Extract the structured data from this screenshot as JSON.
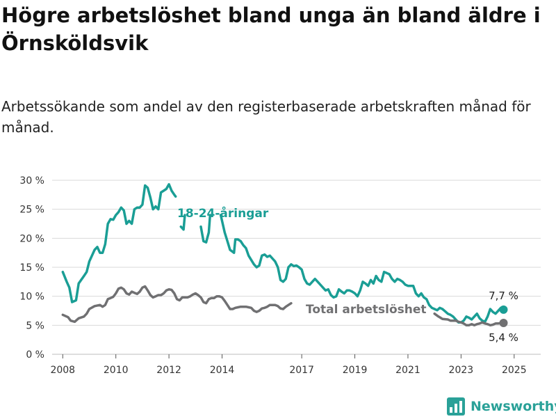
{
  "title": "Högre arbetslöshet bland unga än bland äldre i Örnsköldsvik",
  "subtitle": "Arbetssökande som andel av den registerbaserade arbetskraften månad för månad.",
  "brand": {
    "name": "Newsworthy",
    "icon": "bar-chart-logo-icon"
  },
  "colors": {
    "youth": "#1a9e95",
    "total": "#707072",
    "grid": "#d9d9d9",
    "text": "#333333"
  },
  "chart_data": {
    "type": "line",
    "title": "Högre arbetslöshet bland unga än bland äldre i Örnsköldsvik",
    "subtitle": "Arbetssökande som andel av den registerbaserade arbetskraften månad för månad.",
    "xlabel": "",
    "ylabel": "",
    "xlim": [
      2007.6,
      2026.0
    ],
    "ylim": [
      0,
      30
    ],
    "x_ticks": [
      {
        "value": 2008,
        "label": "2008"
      },
      {
        "value": 2010,
        "label": "2010"
      },
      {
        "value": 2012,
        "label": "2012"
      },
      {
        "value": 2014,
        "label": "2014"
      },
      {
        "value": 2017,
        "label": "2017"
      },
      {
        "value": 2019,
        "label": "2019"
      },
      {
        "value": 2021,
        "label": "2021"
      },
      {
        "value": 2023,
        "label": "2023"
      },
      {
        "value": 2025,
        "label": "2025"
      }
    ],
    "y_ticks": [
      {
        "value": 0,
        "label": "0 %"
      },
      {
        "value": 5,
        "label": "5 %"
      },
      {
        "value": 10,
        "label": "10 %"
      },
      {
        "value": 15,
        "label": "15 %"
      },
      {
        "value": 20,
        "label": "20 %"
      },
      {
        "value": 25,
        "label": "25 %"
      },
      {
        "value": 30,
        "label": "30 %"
      }
    ],
    "grid": true,
    "legend": "inline labels",
    "series": [
      {
        "name": "18-24-åringar",
        "color": "#1a9e95",
        "end_label": "7,7 %",
        "points": [
          [
            2008.0,
            14.2
          ],
          [
            2008.15,
            12.5
          ],
          [
            2008.25,
            11.5
          ],
          [
            2008.35,
            9.0
          ],
          [
            2008.5,
            9.3
          ],
          [
            2008.6,
            12.2
          ],
          [
            2008.8,
            13.5
          ],
          [
            2008.9,
            14.2
          ],
          [
            2009.0,
            16.0
          ],
          [
            2009.2,
            18.0
          ],
          [
            2009.3,
            18.5
          ],
          [
            2009.4,
            17.5
          ],
          [
            2009.5,
            17.5
          ],
          [
            2009.6,
            19.0
          ],
          [
            2009.7,
            22.5
          ],
          [
            2009.8,
            23.3
          ],
          [
            2009.9,
            23.2
          ],
          [
            2010.0,
            24.0
          ],
          [
            2010.1,
            24.5
          ],
          [
            2010.2,
            25.3
          ],
          [
            2010.3,
            24.8
          ],
          [
            2010.4,
            22.5
          ],
          [
            2010.5,
            23.0
          ],
          [
            2010.6,
            22.5
          ],
          [
            2010.7,
            25.0
          ],
          [
            2010.8,
            25.3
          ],
          [
            2010.9,
            25.3
          ],
          [
            2011.0,
            25.8
          ],
          [
            2011.1,
            29.1
          ],
          [
            2011.2,
            28.7
          ],
          [
            2011.3,
            27.0
          ],
          [
            2011.4,
            25.0
          ],
          [
            2011.5,
            25.5
          ],
          [
            2011.6,
            25.0
          ],
          [
            2011.7,
            27.9
          ],
          [
            2011.8,
            28.2
          ],
          [
            2011.9,
            28.5
          ],
          [
            2012.0,
            29.3
          ],
          [
            2012.1,
            28.2
          ],
          [
            2012.2,
            27.5
          ],
          [
            2012.25,
            27.2
          ],
          null,
          [
            2012.45,
            22.0
          ],
          [
            2012.55,
            21.5
          ],
          [
            2012.6,
            24.0
          ],
          null,
          [
            2013.2,
            22.0
          ],
          [
            2013.3,
            19.5
          ],
          [
            2013.4,
            19.3
          ],
          [
            2013.5,
            21.0
          ],
          [
            2013.55,
            24.0
          ],
          null,
          [
            2013.95,
            24.0
          ],
          [
            2014.1,
            21.0
          ],
          [
            2014.2,
            19.5
          ],
          [
            2014.3,
            18.0
          ],
          [
            2014.45,
            17.5
          ],
          [
            2014.5,
            19.8
          ],
          [
            2014.6,
            19.8
          ],
          [
            2014.7,
            19.5
          ],
          [
            2014.8,
            18.8
          ],
          [
            2014.9,
            18.3
          ],
          [
            2015.0,
            17.0
          ],
          [
            2015.2,
            15.5
          ],
          [
            2015.3,
            15.0
          ],
          [
            2015.4,
            15.3
          ],
          [
            2015.5,
            17.0
          ],
          [
            2015.6,
            17.2
          ],
          [
            2015.7,
            16.8
          ],
          [
            2015.8,
            17.0
          ],
          [
            2015.9,
            16.5
          ],
          [
            2016.0,
            16.0
          ],
          [
            2016.1,
            15.0
          ],
          [
            2016.2,
            12.8
          ],
          [
            2016.3,
            12.5
          ],
          [
            2016.4,
            13.0
          ],
          [
            2016.5,
            15.0
          ],
          [
            2016.6,
            15.5
          ],
          [
            2016.7,
            15.2
          ],
          [
            2016.8,
            15.3
          ],
          [
            2016.9,
            15.0
          ],
          [
            2017.0,
            14.6
          ],
          [
            2017.1,
            13.0
          ],
          [
            2017.2,
            12.2
          ],
          [
            2017.3,
            12.0
          ],
          [
            2017.4,
            12.5
          ],
          [
            2017.5,
            13.0
          ],
          [
            2017.6,
            12.5
          ],
          [
            2017.7,
            12.0
          ],
          [
            2017.8,
            11.5
          ],
          [
            2017.9,
            11.0
          ],
          [
            2018.0,
            11.2
          ],
          [
            2018.1,
            10.2
          ],
          [
            2018.2,
            9.8
          ],
          [
            2018.3,
            10.0
          ],
          [
            2018.4,
            11.2
          ],
          [
            2018.5,
            10.8
          ],
          [
            2018.6,
            10.5
          ],
          [
            2018.7,
            11.0
          ],
          [
            2018.8,
            11.0
          ],
          [
            2018.9,
            10.8
          ],
          [
            2019.0,
            10.5
          ],
          [
            2019.1,
            10.0
          ],
          [
            2019.2,
            11.0
          ],
          [
            2019.3,
            12.5
          ],
          [
            2019.4,
            12.2
          ],
          [
            2019.5,
            11.8
          ],
          [
            2019.6,
            12.8
          ],
          [
            2019.7,
            12.2
          ],
          [
            2019.8,
            13.5
          ],
          [
            2019.9,
            12.8
          ],
          [
            2020.0,
            12.5
          ],
          [
            2020.1,
            14.2
          ],
          [
            2020.2,
            14.0
          ],
          [
            2020.3,
            13.8
          ],
          [
            2020.4,
            13.0
          ],
          [
            2020.5,
            12.5
          ],
          [
            2020.6,
            13.0
          ],
          [
            2020.7,
            12.8
          ],
          [
            2020.8,
            12.5
          ],
          [
            2020.9,
            12.0
          ],
          [
            2021.0,
            11.8
          ],
          [
            2021.1,
            11.8
          ],
          [
            2021.2,
            11.8
          ],
          [
            2021.3,
            10.5
          ],
          [
            2021.4,
            10.0
          ],
          [
            2021.5,
            10.5
          ],
          [
            2021.6,
            9.8
          ],
          [
            2021.7,
            9.5
          ],
          [
            2021.8,
            8.5
          ],
          [
            2021.9,
            8.0
          ],
          [
            2022.0,
            7.8
          ],
          [
            2022.1,
            7.6
          ],
          [
            2022.2,
            8.0
          ],
          [
            2022.3,
            7.8
          ],
          [
            2022.4,
            7.4
          ],
          [
            2022.5,
            7.0
          ],
          [
            2022.6,
            6.8
          ],
          [
            2022.7,
            6.5
          ],
          [
            2022.8,
            6.0
          ],
          [
            2022.9,
            5.5
          ],
          [
            2023.0,
            5.5
          ],
          [
            2023.1,
            5.8
          ],
          [
            2023.2,
            6.5
          ],
          [
            2023.3,
            6.3
          ],
          [
            2023.4,
            6.0
          ],
          [
            2023.5,
            6.5
          ],
          [
            2023.6,
            7.0
          ],
          [
            2023.7,
            6.2
          ],
          [
            2023.8,
            5.8
          ],
          [
            2023.9,
            5.6
          ],
          [
            2024.0,
            6.5
          ],
          [
            2024.1,
            7.8
          ],
          [
            2024.2,
            7.3
          ],
          [
            2024.3,
            7.0
          ],
          [
            2024.4,
            7.5
          ],
          [
            2024.5,
            8.0
          ],
          [
            2024.6,
            7.7
          ]
        ]
      },
      {
        "name": "Total arbetslöshet",
        "color": "#707072",
        "end_label": "5,4 %",
        "points": [
          [
            2008.0,
            6.8
          ],
          [
            2008.2,
            6.4
          ],
          [
            2008.3,
            5.8
          ],
          [
            2008.45,
            5.6
          ],
          [
            2008.6,
            6.2
          ],
          [
            2008.8,
            6.5
          ],
          [
            2008.9,
            7.0
          ],
          [
            2009.0,
            7.8
          ],
          [
            2009.2,
            8.3
          ],
          [
            2009.4,
            8.5
          ],
          [
            2009.5,
            8.2
          ],
          [
            2009.6,
            8.5
          ],
          [
            2009.7,
            9.5
          ],
          [
            2009.8,
            9.7
          ],
          [
            2009.9,
            9.9
          ],
          [
            2010.0,
            10.5
          ],
          [
            2010.1,
            11.3
          ],
          [
            2010.2,
            11.5
          ],
          [
            2010.3,
            11.2
          ],
          [
            2010.4,
            10.5
          ],
          [
            2010.5,
            10.3
          ],
          [
            2010.6,
            10.8
          ],
          [
            2010.7,
            10.6
          ],
          [
            2010.8,
            10.4
          ],
          [
            2010.9,
            10.8
          ],
          [
            2011.0,
            11.5
          ],
          [
            2011.1,
            11.7
          ],
          [
            2011.2,
            11.0
          ],
          [
            2011.3,
            10.2
          ],
          [
            2011.4,
            9.8
          ],
          [
            2011.5,
            10.0
          ],
          [
            2011.6,
            10.2
          ],
          [
            2011.7,
            10.2
          ],
          [
            2011.8,
            10.5
          ],
          [
            2011.9,
            11.0
          ],
          [
            2012.0,
            11.2
          ],
          [
            2012.1,
            11.1
          ],
          [
            2012.2,
            10.5
          ],
          [
            2012.3,
            9.5
          ],
          [
            2012.4,
            9.3
          ],
          [
            2012.5,
            9.8
          ],
          [
            2012.6,
            9.8
          ],
          [
            2012.7,
            9.8
          ],
          [
            2012.8,
            10.0
          ],
          [
            2012.9,
            10.3
          ],
          [
            2013.0,
            10.5
          ],
          [
            2013.1,
            10.2
          ],
          [
            2013.2,
            9.8
          ],
          [
            2013.3,
            9.0
          ],
          [
            2013.4,
            8.8
          ],
          [
            2013.5,
            9.5
          ],
          [
            2013.6,
            9.7
          ],
          [
            2013.7,
            9.7
          ],
          [
            2013.8,
            10.0
          ],
          [
            2013.9,
            10.0
          ],
          [
            2014.0,
            9.8
          ],
          [
            2014.1,
            9.2
          ],
          [
            2014.2,
            8.5
          ],
          [
            2014.3,
            7.8
          ],
          [
            2014.4,
            7.8
          ],
          [
            2014.5,
            8.0
          ],
          [
            2014.6,
            8.1
          ],
          [
            2014.7,
            8.2
          ],
          [
            2014.8,
            8.2
          ],
          [
            2014.9,
            8.2
          ],
          [
            2015.0,
            8.1
          ],
          [
            2015.1,
            8.0
          ],
          [
            2015.2,
            7.5
          ],
          [
            2015.3,
            7.3
          ],
          [
            2015.4,
            7.5
          ],
          [
            2015.5,
            7.9
          ],
          [
            2015.6,
            8.0
          ],
          [
            2015.7,
            8.2
          ],
          [
            2015.8,
            8.5
          ],
          [
            2015.9,
            8.5
          ],
          [
            2016.0,
            8.5
          ],
          [
            2016.1,
            8.3
          ],
          [
            2016.2,
            7.9
          ],
          [
            2016.3,
            7.8
          ],
          [
            2016.4,
            8.2
          ],
          [
            2016.5,
            8.5
          ],
          [
            2016.6,
            8.8
          ],
          null,
          [
            2022.0,
            7.0
          ],
          [
            2022.15,
            6.5
          ],
          [
            2022.3,
            6.1
          ],
          [
            2022.5,
            6.0
          ],
          [
            2022.6,
            5.8
          ],
          [
            2022.8,
            5.8
          ],
          [
            2022.9,
            5.6
          ],
          [
            2023.0,
            5.5
          ],
          [
            2023.1,
            5.3
          ],
          [
            2023.2,
            5.0
          ],
          [
            2023.3,
            5.0
          ],
          [
            2023.4,
            5.2
          ],
          [
            2023.5,
            5.0
          ],
          [
            2023.6,
            5.2
          ],
          [
            2023.7,
            5.3
          ],
          [
            2023.8,
            5.5
          ],
          [
            2023.9,
            5.3
          ],
          [
            2024.0,
            5.2
          ],
          [
            2024.1,
            5.0
          ],
          [
            2024.2,
            5.1
          ],
          [
            2024.3,
            5.3
          ],
          [
            2024.4,
            5.3
          ],
          [
            2024.5,
            5.4
          ],
          [
            2024.6,
            5.4
          ]
        ]
      }
    ]
  }
}
